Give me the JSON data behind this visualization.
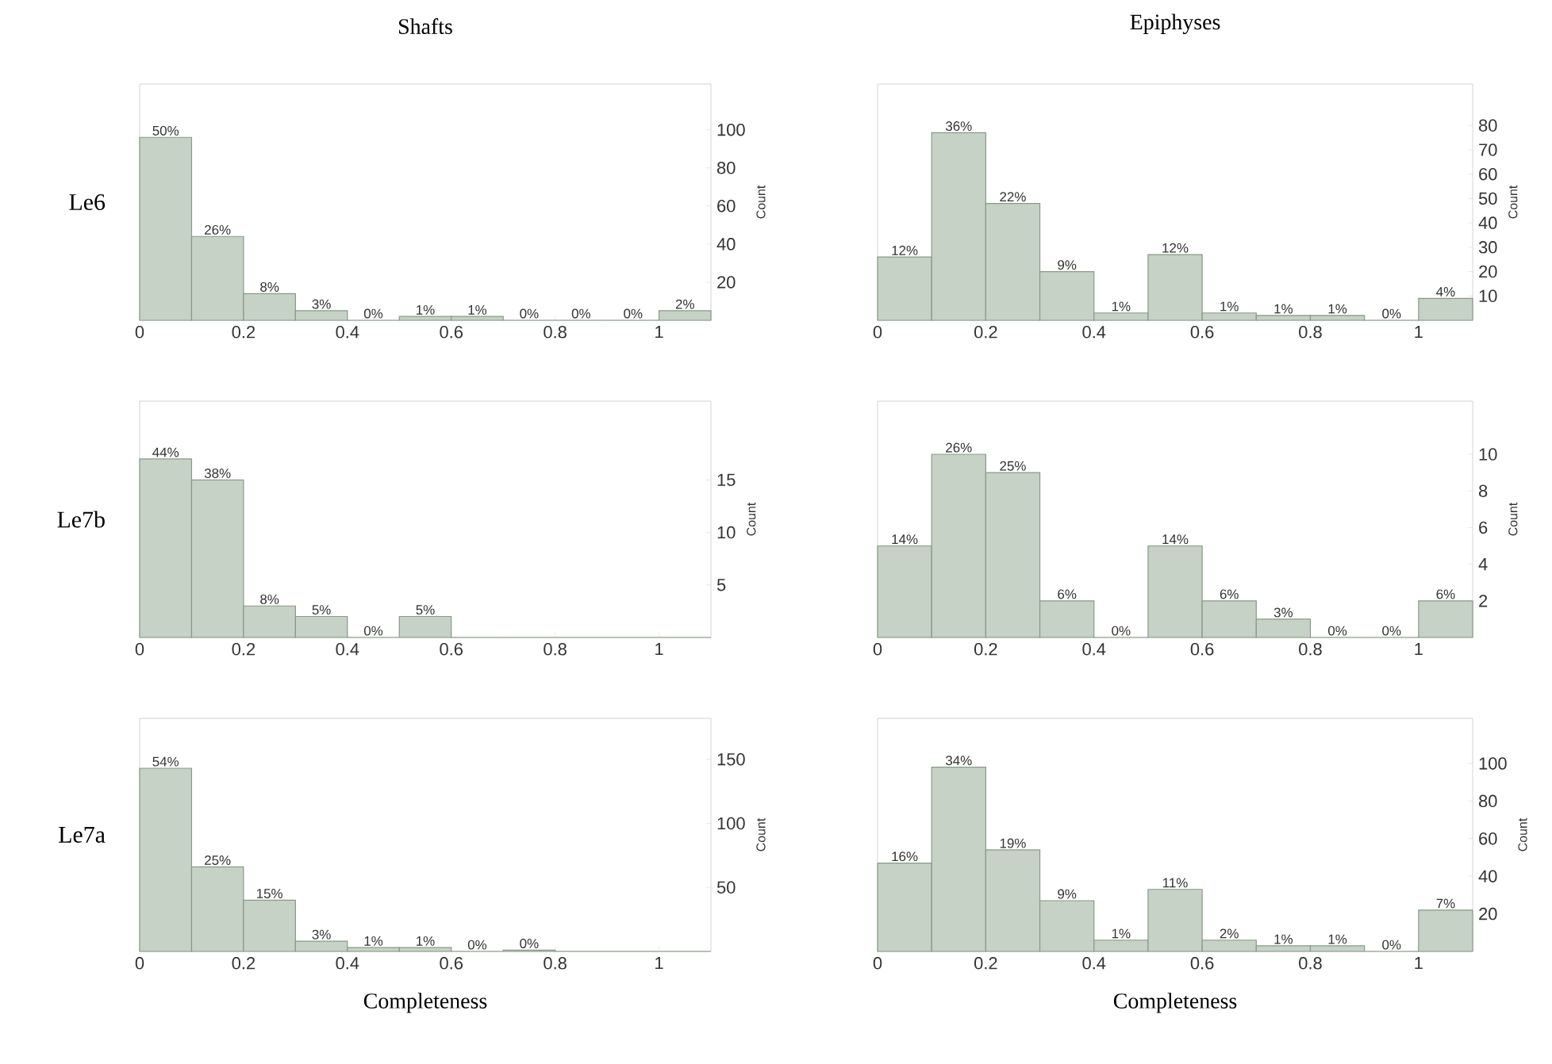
{
  "chart_data": [
    {
      "type": "histogram",
      "title": "Shafts",
      "ylabel": "Count",
      "bins": [
        0,
        0.1,
        0.2,
        0.3,
        0.4,
        0.5,
        0.6,
        0.7,
        0.8,
        0.9,
        1.0,
        1.1
      ],
      "values": [
        96,
        44,
        14,
        5,
        0,
        2,
        2,
        0,
        0,
        0,
        5
      ],
      "color": "#c5d2c5",
      "xlim": [
        0,
        1.1
      ],
      "ylim": [
        0,
        124
      ],
      "xticks": [
        0,
        0.2,
        0.4,
        0.6,
        0.8,
        1
      ],
      "yticks": [
        20,
        40,
        60,
        80,
        100
      ],
      "annotations": [
        "Le6",
        {
          "text": "50%",
          "x": 0.05,
          "y": 96
        },
        {
          "text": "26%",
          "x": 0.15,
          "y": 44
        },
        {
          "text": "8%",
          "x": 0.25,
          "y": 14
        },
        {
          "text": "3%",
          "x": 0.35,
          "y": 5
        },
        {
          "text": "0%",
          "x": 0.45,
          "y": 0
        },
        {
          "text": "1%",
          "x": 0.55,
          "y": 2
        },
        {
          "text": "1%",
          "x": 0.65,
          "y": 2
        },
        {
          "text": "0%",
          "x": 0.75,
          "y": 0
        },
        {
          "text": "0%",
          "x": 0.85,
          "y": 0
        },
        {
          "text": "0%",
          "x": 0.95,
          "y": 0
        },
        {
          "text": "2%",
          "x": 1.05,
          "y": 5
        }
      ]
    },
    {
      "type": "histogram",
      "title": "Epiphyses",
      "ylabel": "Count",
      "bins": [
        0,
        0.1,
        0.2,
        0.3,
        0.4,
        0.5,
        0.6,
        0.7,
        0.8,
        0.9,
        1.0,
        1.1
      ],
      "values": [
        26,
        77,
        48,
        20,
        3,
        27,
        3,
        2,
        2,
        0,
        9
      ],
      "color": "#c5d2c5",
      "xlim": [
        0,
        1.1
      ],
      "ylim": [
        0,
        97
      ],
      "xticks": [
        0,
        0.2,
        0.4,
        0.6,
        0.8,
        1
      ],
      "yticks": [
        10,
        20,
        30,
        40,
        50,
        60,
        70,
        80
      ],
      "annotations": [
        {
          "text": "12%",
          "x": 0.05,
          "y": 26
        },
        {
          "text": "36%",
          "x": 0.15,
          "y": 77
        },
        {
          "text": "22%",
          "x": 0.25,
          "y": 48
        },
        {
          "text": "9%",
          "x": 0.35,
          "y": 20
        },
        {
          "text": "1%",
          "x": 0.45,
          "y": 3
        },
        {
          "text": "12%",
          "x": 0.55,
          "y": 27
        },
        {
          "text": "1%",
          "x": 0.65,
          "y": 3
        },
        {
          "text": "1%",
          "x": 0.75,
          "y": 2
        },
        {
          "text": "1%",
          "x": 0.85,
          "y": 2
        },
        {
          "text": "0%",
          "x": 0.95,
          "y": 0
        },
        {
          "text": "4%",
          "x": 1.05,
          "y": 9
        }
      ]
    },
    {
      "type": "histogram",
      "ylabel": "Count",
      "bins": [
        0,
        0.1,
        0.2,
        0.3,
        0.4,
        0.5,
        0.6,
        0.7,
        0.8,
        0.9,
        1.0,
        1.1
      ],
      "values": [
        17,
        15,
        3,
        2,
        0,
        2,
        0,
        0,
        0,
        0,
        0
      ],
      "color": "#c5d2c5",
      "xlim": [
        0,
        1.1
      ],
      "ylim": [
        0,
        22.5
      ],
      "xticks": [
        0,
        0.2,
        0.4,
        0.6,
        0.8,
        1
      ],
      "yticks": [
        5,
        10,
        15
      ],
      "annotations": [
        "Le7b",
        {
          "text": "44%",
          "x": 0.05,
          "y": 17
        },
        {
          "text": "38%",
          "x": 0.15,
          "y": 15
        },
        {
          "text": "8%",
          "x": 0.25,
          "y": 3
        },
        {
          "text": "5%",
          "x": 0.35,
          "y": 2
        },
        {
          "text": "0%",
          "x": 0.45,
          "y": 0
        },
        {
          "text": "5%",
          "x": 0.55,
          "y": 2
        }
      ]
    },
    {
      "type": "histogram",
      "ylabel": "Count",
      "bins": [
        0,
        0.1,
        0.2,
        0.3,
        0.4,
        0.5,
        0.6,
        0.7,
        0.8,
        0.9,
        1.0,
        1.1
      ],
      "values": [
        5,
        10,
        9,
        2,
        0,
        5,
        2,
        1,
        0,
        0,
        2
      ],
      "color": "#c5d2c5",
      "xlim": [
        0,
        1.1
      ],
      "ylim": [
        0,
        12.9
      ],
      "xticks": [
        0,
        0.2,
        0.4,
        0.6,
        0.8,
        1
      ],
      "yticks": [
        2,
        4,
        6,
        8,
        10
      ],
      "annotations": [
        {
          "text": "14%",
          "x": 0.05,
          "y": 5
        },
        {
          "text": "26%",
          "x": 0.15,
          "y": 10
        },
        {
          "text": "25%",
          "x": 0.25,
          "y": 9
        },
        {
          "text": "6%",
          "x": 0.35,
          "y": 2
        },
        {
          "text": "0%",
          "x": 0.45,
          "y": 0
        },
        {
          "text": "14%",
          "x": 0.55,
          "y": 5
        },
        {
          "text": "6%",
          "x": 0.65,
          "y": 2
        },
        {
          "text": "3%",
          "x": 0.75,
          "y": 1
        },
        {
          "text": "0%",
          "x": 0.85,
          "y": 0
        },
        {
          "text": "0%",
          "x": 0.95,
          "y": 0
        },
        {
          "text": "6%",
          "x": 1.05,
          "y": 2
        }
      ]
    },
    {
      "type": "histogram",
      "xlabel": "Completeness",
      "ylabel": "Count",
      "bins": [
        0,
        0.1,
        0.2,
        0.3,
        0.4,
        0.5,
        0.6,
        0.7,
        0.8,
        0.9,
        1.0,
        1.1
      ],
      "values": [
        143,
        66,
        40,
        8,
        3,
        3,
        0,
        1,
        0,
        0,
        0
      ],
      "color": "#c5d2c5",
      "xlim": [
        0,
        1.1
      ],
      "ylim": [
        0,
        182
      ],
      "xticks": [
        0,
        0.2,
        0.4,
        0.6,
        0.8,
        1
      ],
      "yticks": [
        50,
        100,
        150
      ],
      "annotations": [
        "Le7a",
        {
          "text": "54%",
          "x": 0.05,
          "y": 143
        },
        {
          "text": "25%",
          "x": 0.15,
          "y": 66
        },
        {
          "text": "15%",
          "x": 0.25,
          "y": 40
        },
        {
          "text": "3%",
          "x": 0.35,
          "y": 8
        },
        {
          "text": "1%",
          "x": 0.45,
          "y": 3
        },
        {
          "text": "1%",
          "x": 0.55,
          "y": 3
        },
        {
          "text": "0%",
          "x": 0.65,
          "y": 0
        },
        {
          "text": "0%",
          "x": 0.75,
          "y": 1
        }
      ]
    },
    {
      "type": "histogram",
      "xlabel": "Completeness",
      "ylabel": "Count",
      "bins": [
        0,
        0.1,
        0.2,
        0.3,
        0.4,
        0.5,
        0.6,
        0.7,
        0.8,
        0.9,
        1.0,
        1.1
      ],
      "values": [
        47,
        98,
        54,
        27,
        6,
        33,
        6,
        3,
        3,
        0,
        22
      ],
      "color": "#c5d2c5",
      "xlim": [
        0,
        1.1
      ],
      "ylim": [
        0,
        124
      ],
      "xticks": [
        0,
        0.2,
        0.4,
        0.6,
        0.8,
        1
      ],
      "yticks": [
        20,
        40,
        60,
        80,
        100
      ],
      "annotations": [
        {
          "text": "16%",
          "x": 0.05,
          "y": 47
        },
        {
          "text": "34%",
          "x": 0.15,
          "y": 98
        },
        {
          "text": "19%",
          "x": 0.25,
          "y": 54
        },
        {
          "text": "9%",
          "x": 0.35,
          "y": 27
        },
        {
          "text": "1%",
          "x": 0.45,
          "y": 6
        },
        {
          "text": "11%",
          "x": 0.55,
          "y": 33
        },
        {
          "text": "2%",
          "x": 0.65,
          "y": 6
        },
        {
          "text": "1%",
          "x": 0.75,
          "y": 3
        },
        {
          "text": "1%",
          "x": 0.85,
          "y": 3
        },
        {
          "text": "0%",
          "x": 0.95,
          "y": 0
        },
        {
          "text": "7%",
          "x": 1.05,
          "y": 22
        }
      ]
    }
  ]
}
